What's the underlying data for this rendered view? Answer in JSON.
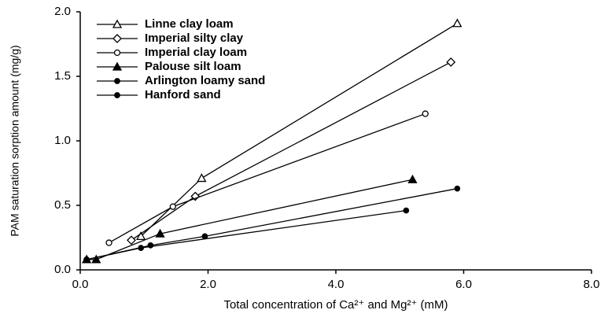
{
  "chart_data": {
    "type": "line",
    "xlabel": "Total concentration of Ca²⁺ and Mg²⁺ (mM)",
    "ylabel": "PAM saturation sorption amount (mg/g)",
    "xlim": [
      0,
      8
    ],
    "ylim": [
      0,
      2
    ],
    "xticks": [
      {
        "value": 0,
        "label": "0.0"
      },
      {
        "value": 2,
        "label": "2.0"
      },
      {
        "value": 4,
        "label": "4.0"
      },
      {
        "value": 6,
        "label": "6.0"
      },
      {
        "value": 8,
        "label": "8.0"
      }
    ],
    "yticks": [
      {
        "value": 0,
        "label": "0.0"
      },
      {
        "value": 0.5,
        "label": "0.5"
      },
      {
        "value": 1,
        "label": "1.0"
      },
      {
        "value": 1.5,
        "label": "1.5"
      },
      {
        "value": 2,
        "label": "2.0"
      }
    ],
    "grid": false,
    "legend": "upper left",
    "series": [
      {
        "name": "Linne clay loam",
        "color": "#000000",
        "marker": "open-triangle",
        "x": [
          0.95,
          1.9,
          5.9
        ],
        "values": [
          0.26,
          0.71,
          1.91
        ]
      },
      {
        "name": "Imperial silty clay",
        "color": "#000000",
        "marker": "open-diamond",
        "x": [
          0.8,
          1.8,
          5.8
        ],
        "values": [
          0.23,
          0.57,
          1.61
        ]
      },
      {
        "name": "Imperial clay loam",
        "color": "#000000",
        "marker": "open-circle",
        "x": [
          0.45,
          1.45,
          5.4
        ],
        "values": [
          0.21,
          0.49,
          1.21
        ]
      },
      {
        "name": "Palouse silt loam",
        "color": "#000000",
        "marker": "filled-triangle",
        "x": [
          0.1,
          0.25,
          1.25,
          5.2
        ],
        "values": [
          0.08,
          0.08,
          0.28,
          0.7
        ]
      },
      {
        "name": "Arlington loamy sand",
        "color": "#000000",
        "marker": "filled-circle",
        "x": [
          0.1,
          1.1,
          1.95,
          5.9
        ],
        "values": [
          0.08,
          0.19,
          0.26,
          0.63
        ]
      },
      {
        "name": "Hanford sand",
        "color": "#000000",
        "marker": "filled-circle",
        "x": [
          0.1,
          0.95,
          5.1
        ],
        "values": [
          0.08,
          0.17,
          0.46
        ]
      }
    ]
  }
}
